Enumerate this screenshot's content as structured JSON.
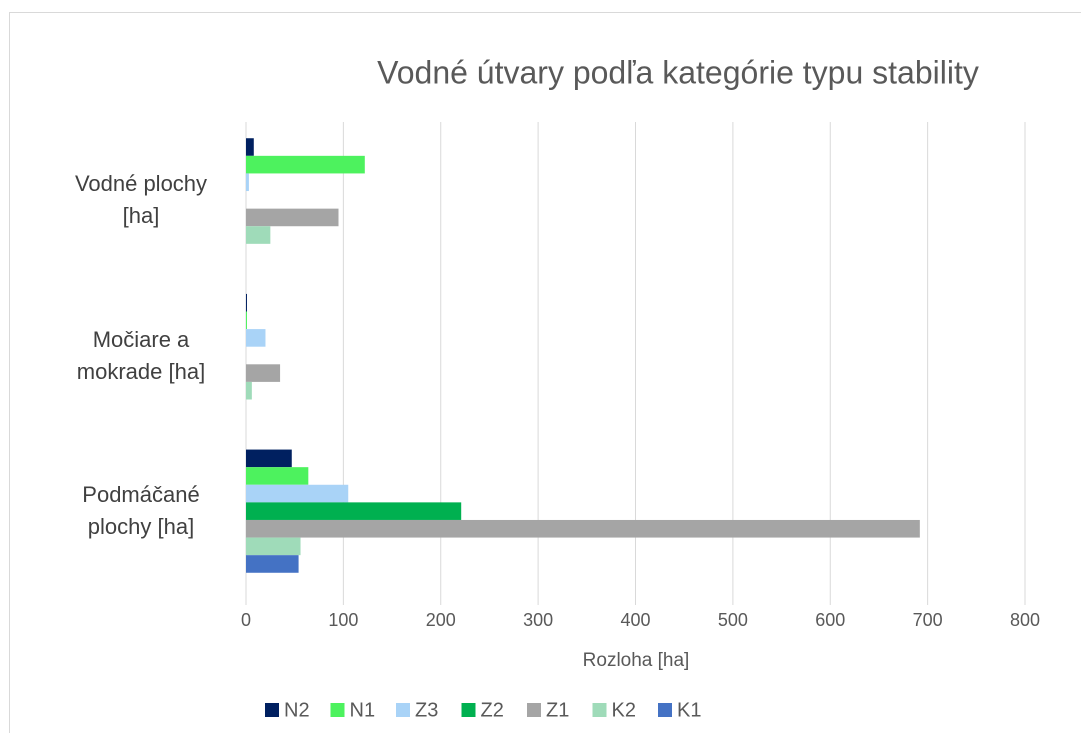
{
  "chart_data": {
    "type": "bar",
    "orientation": "horizontal",
    "title": "Vodné útvary podľa kategórie typu stability",
    "xlabel": "Rozloha [ha]",
    "categories": [
      "Vodné plochy [ha]",
      "Močiare a mokrade [ha]",
      "Podmáčané plochy [ha]"
    ],
    "series": [
      {
        "name": "N2",
        "color": "#002060",
        "values": [
          8,
          1,
          47
        ]
      },
      {
        "name": "N1",
        "color": "#4df25e",
        "values": [
          122,
          1,
          64
        ]
      },
      {
        "name": "Z3",
        "color": "#a9d3f7",
        "values": [
          3,
          20,
          105
        ]
      },
      {
        "name": "Z2",
        "color": "#00b050",
        "values": [
          null,
          null,
          221
        ]
      },
      {
        "name": "Z1",
        "color": "#a5a5a5",
        "values": [
          95,
          35,
          692
        ]
      },
      {
        "name": "K2",
        "color": "#9fdbb9",
        "values": [
          25,
          6,
          56
        ]
      },
      {
        "name": "K1",
        "color": "#4472c4",
        "values": [
          null,
          null,
          54
        ]
      }
    ],
    "xlim": [
      0,
      800
    ],
    "xticks": [
      0,
      100,
      200,
      300,
      400,
      500,
      600,
      700,
      800
    ],
    "grid": true,
    "legend": "bottom"
  }
}
